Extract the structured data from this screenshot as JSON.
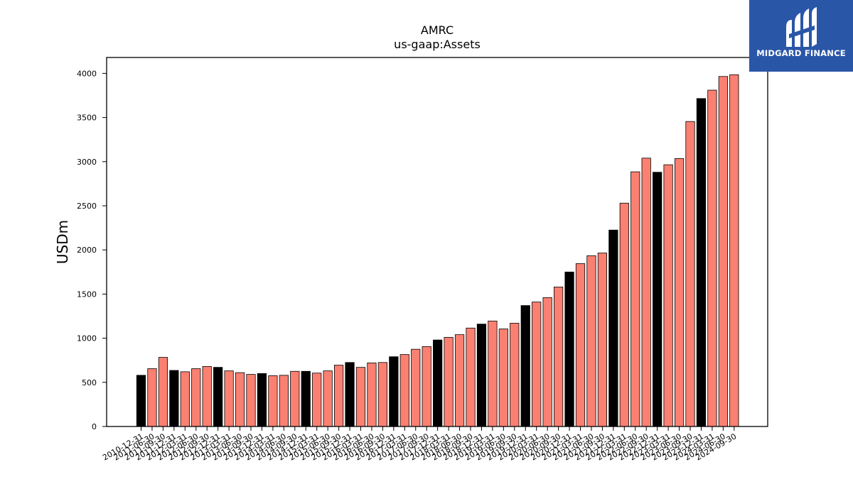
{
  "logo": {
    "text": "MIDGARD FINANCE",
    "background": "#2a56a8"
  },
  "chart_data": {
    "type": "bar",
    "title": "AMRC",
    "subtitle": "us-gaap:Assets",
    "xlabel": "",
    "ylabel": "USDm",
    "ylim": [
      0,
      4180
    ],
    "yticks": [
      0,
      500,
      1000,
      1500,
      2000,
      2500,
      3000,
      3500,
      4000
    ],
    "colors": {
      "annual": "#000000",
      "quarterly": "#fa8072",
      "edge": "#000000"
    },
    "categories": [
      "2010-12-31",
      "2011-06-30",
      "2011-09-30",
      "2011-12-31",
      "2012-03-31",
      "2012-06-30",
      "2012-09-30",
      "2012-12-31",
      "2013-03-31",
      "2013-06-30",
      "2013-09-30",
      "2013-12-31",
      "2014-03-31",
      "2014-06-30",
      "2014-09-30",
      "2014-12-31",
      "2015-03-31",
      "2015-06-30",
      "2015-09-30",
      "2015-12-31",
      "2016-03-31",
      "2016-06-30",
      "2016-09-30",
      "2016-12-31",
      "2017-03-31",
      "2017-06-30",
      "2017-09-30",
      "2017-12-31",
      "2018-03-31",
      "2018-06-30",
      "2018-09-30",
      "2018-12-31",
      "2019-03-31",
      "2019-06-30",
      "2019-09-30",
      "2019-12-31",
      "2020-03-31",
      "2020-06-30",
      "2020-09-30",
      "2020-12-31",
      "2021-03-31",
      "2021-06-30",
      "2021-09-30",
      "2021-12-31",
      "2022-03-31",
      "2022-06-30",
      "2022-09-30",
      "2022-12-31",
      "2023-03-31",
      "2023-06-30",
      "2023-09-30",
      "2023-12-31",
      "2024-03-31",
      "2024-06-30",
      "2024-09-30"
    ],
    "values": [
      580,
      655,
      783,
      635,
      620,
      655,
      680,
      670,
      630,
      610,
      590,
      600,
      575,
      580,
      625,
      625,
      605,
      630,
      695,
      725,
      670,
      720,
      725,
      790,
      815,
      875,
      905,
      980,
      1010,
      1040,
      1115,
      1160,
      1195,
      1105,
      1170,
      1370,
      1410,
      1460,
      1580,
      1750,
      1845,
      1935,
      1965,
      2225,
      2530,
      2885,
      3040,
      2880,
      2965,
      3035,
      3455,
      3715,
      3810,
      3965,
      3985
    ],
    "annual": [
      true,
      false,
      false,
      true,
      false,
      false,
      false,
      true,
      false,
      false,
      false,
      true,
      false,
      false,
      false,
      true,
      false,
      false,
      false,
      true,
      false,
      false,
      false,
      true,
      false,
      false,
      false,
      true,
      false,
      false,
      false,
      true,
      false,
      false,
      false,
      true,
      false,
      false,
      false,
      true,
      false,
      false,
      false,
      true,
      false,
      false,
      false,
      true,
      false,
      false,
      false,
      true,
      false,
      false,
      false
    ]
  }
}
